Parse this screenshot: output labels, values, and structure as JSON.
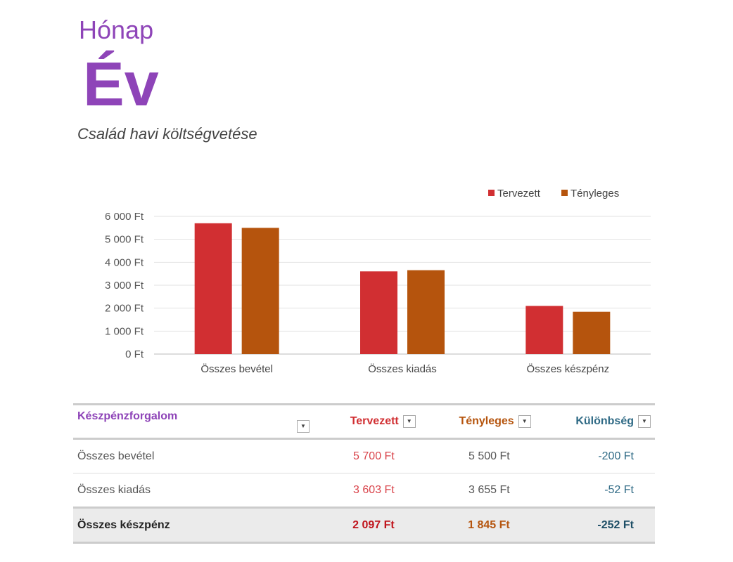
{
  "header": {
    "month": "Hónap",
    "year": "Év",
    "subtitle": "Család havi költségvetése"
  },
  "colors": {
    "planned": "#d12f32",
    "actual": "#b5540d",
    "difference": "#2f6a85",
    "title": "#8e44b8"
  },
  "chart_data": {
    "type": "bar",
    "categories": [
      "Összes bevétel",
      "Összes kiadás",
      "Összes készpénz"
    ],
    "series": [
      {
        "name": "Tervezett",
        "values": [
          5700,
          3603,
          2097
        ]
      },
      {
        "name": "Tényleges",
        "values": [
          5500,
          3655,
          1845
        ]
      }
    ],
    "ylim": [
      0,
      6000
    ],
    "yticks": [
      "0 Ft",
      "1 000 Ft",
      "2 000 Ft",
      "3 000 Ft",
      "4 000 Ft",
      "5 000 Ft",
      "6 000 Ft"
    ],
    "grid": true,
    "legend": "top-right"
  },
  "table": {
    "headers": [
      "Készpénzforgalom",
      "Tervezett",
      "Tényleges",
      "Különbség"
    ],
    "dropdown_icon": "▼",
    "rows": [
      [
        "Összes bevétel",
        "5 700 Ft",
        "5 500 Ft",
        "-200 Ft"
      ],
      [
        "Összes kiadás",
        "3 603 Ft",
        "3 655 Ft",
        "-52 Ft"
      ]
    ],
    "total": [
      "Összes készpénz",
      "2 097 Ft",
      "1 845 Ft",
      "-252 Ft"
    ]
  }
}
